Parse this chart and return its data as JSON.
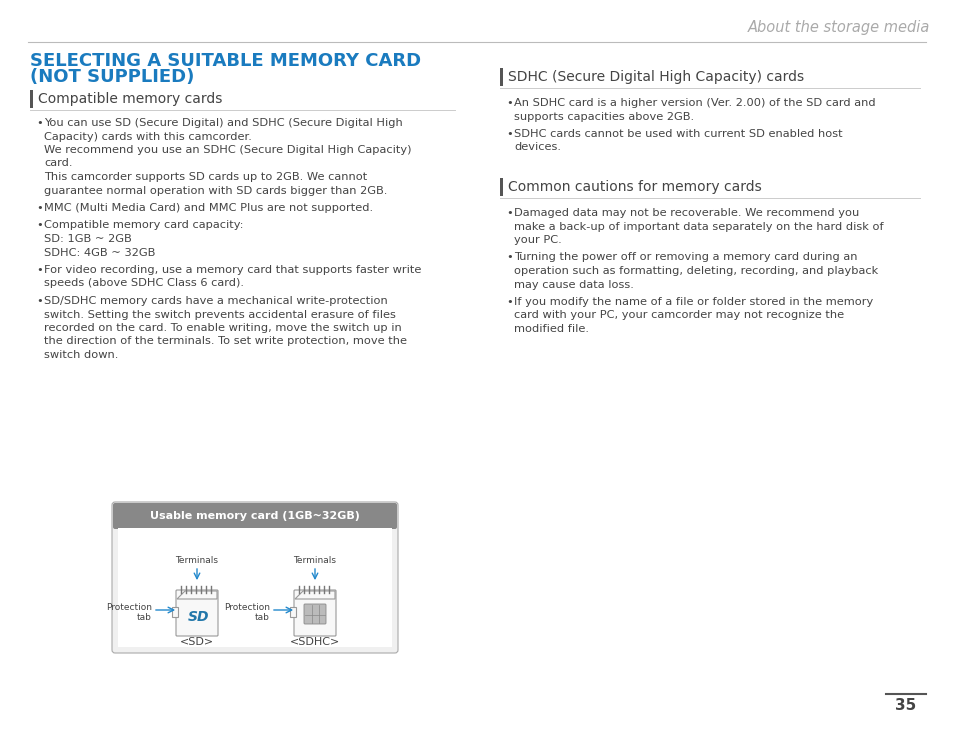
{
  "bg_color": "#ffffff",
  "header_text": "About the storage media",
  "header_color": "#aaaaaa",
  "title_line1": "SELECTING A SUITABLE MEMORY CARD",
  "title_line2": "(NOT SUPPLIED)",
  "title_color": "#1a7bbf",
  "section1_title": "Compatible memory cards",
  "section2_title": "SDHC (Secure Digital High Capacity) cards",
  "section3_title": "Common cautions for memory cards",
  "box_title": "Usable memory card (1GB~32GB)",
  "box_header_color": "#888888",
  "box_border_color": "#aaaaaa",
  "box_inner_bg": "#f5f5f5",
  "text_color": "#444444",
  "line_color": "#cccccc",
  "blue_arrow_color": "#2288cc",
  "page_number": "35",
  "bullet1_lines": [
    "You can use SD (Secure Digital) and SDHC (Secure Digital High",
    "Capacity) cards with this camcorder.",
    "We recommend you use an SDHC (Secure Digital High Capacity)",
    "card.",
    "This camcorder supports SD cards up to 2GB. We cannot",
    "guarantee normal operation with SD cards bigger than 2GB."
  ],
  "bullet2": "MMC (Multi Media Card) and MMC Plus are not supported.",
  "bullet3_lines": [
    "Compatible memory card capacity:",
    "SD: 1GB ~ 2GB",
    "SDHC: 4GB ~ 32GB"
  ],
  "bullet4_lines": [
    "For video recording, use a memory card that supports faster write",
    "speeds (above SDHC Class 6 card)."
  ],
  "bullet5_lines": [
    "SD/SDHC memory cards have a mechanical write-protection",
    "switch. Setting the switch prevents accidental erasure of files",
    "recorded on the card. To enable writing, move the switch up in",
    "the direction of the terminals. To set write protection, move the",
    "switch down."
  ],
  "s2_b1_lines": [
    "An SDHC card is a higher version (Ver. 2.00) of the SD card and",
    "supports capacities above 2GB."
  ],
  "s2_b2_lines": [
    "SDHC cards cannot be used with current SD enabled host",
    "devices."
  ],
  "s3_b1_lines": [
    "Damaged data may not be recoverable. We recommend you",
    "make a back-up of important data separately on the hard disk of",
    "your PC."
  ],
  "s3_b2_lines": [
    "Turning the power off or removing a memory card during an",
    "operation such as formatting, deleting, recording, and playback",
    "may cause data loss."
  ],
  "s3_b3_lines": [
    "If you modify the name of a file or folder stored in the memory",
    "card with your PC, your camcorder may not recognize the",
    "modified file."
  ]
}
